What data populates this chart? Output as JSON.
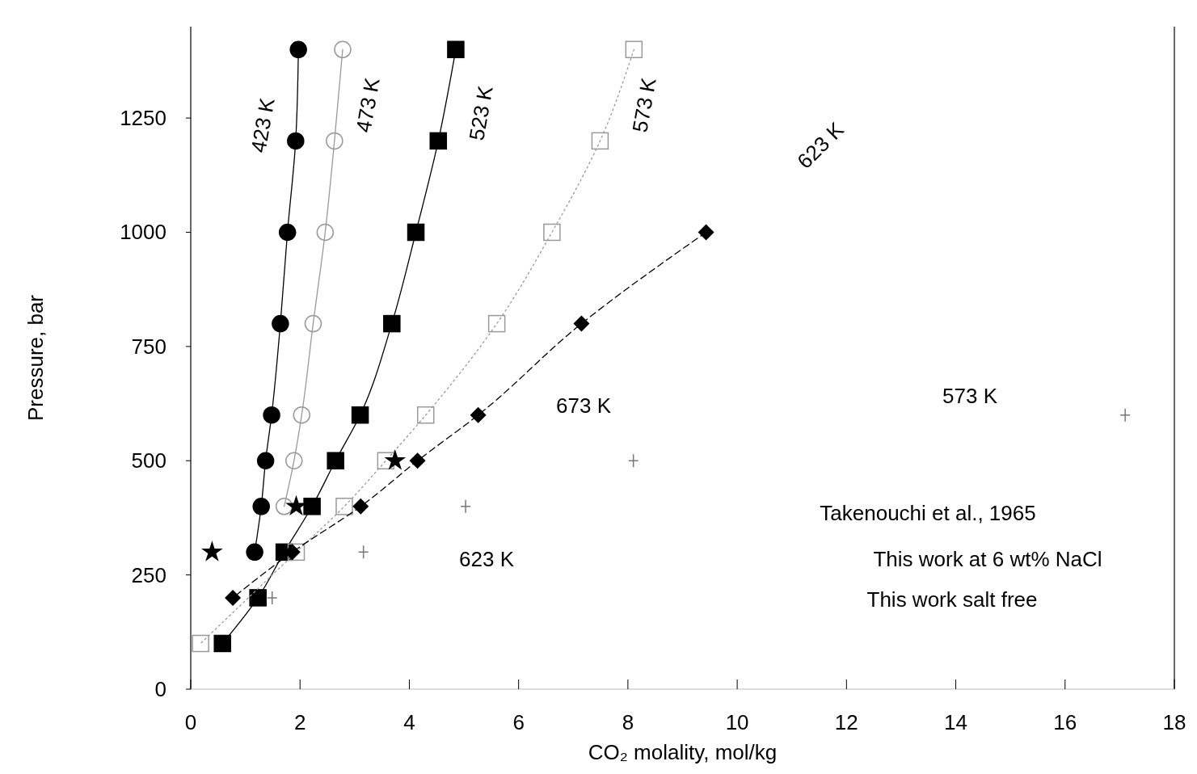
{
  "chart_data": {
    "type": "line",
    "xlabel": "CO₂ molality, mol/kg",
    "ylabel": "Pressure, bar",
    "xlim": [
      0,
      18
    ],
    "ylim": [
      0,
      1450
    ],
    "xticks": [
      0,
      2,
      4,
      6,
      8,
      10,
      12,
      14,
      16,
      18
    ],
    "yticks": [
      0,
      250,
      500,
      750,
      1000,
      1250
    ],
    "grid": false,
    "series": [
      {
        "color": "#000000",
        "marker": "circle",
        "line_style": "solid",
        "x": [
          1.97,
          1.92,
          1.77,
          1.64,
          1.48,
          1.37,
          1.29,
          1.17
        ],
        "values": [
          1400,
          1200,
          1000,
          800,
          600,
          500,
          400,
          300
        ]
      },
      {
        "color": "#999999",
        "marker": "circle",
        "line_style": "solid",
        "x": [
          2.78,
          2.63,
          2.46,
          2.24,
          2.03,
          1.89,
          1.71
        ],
        "values": [
          1400,
          1200,
          1000,
          800,
          600,
          500,
          400
        ]
      },
      {
        "color": "#000000",
        "marker": "square",
        "line_style": "solid",
        "x": [
          4.85,
          4.53,
          4.12,
          3.68,
          3.1,
          2.65,
          2.22,
          1.71,
          1.23,
          0.58
        ],
        "values": [
          1400,
          1200,
          1000,
          800,
          600,
          500,
          400,
          300,
          200,
          100
        ]
      },
      {
        "color": "#999999",
        "marker": "square",
        "line_style": "dotted",
        "x": [
          8.11,
          7.49,
          6.61,
          5.6,
          4.3,
          3.57,
          2.81,
          1.93,
          0.18
        ],
        "values": [
          1400,
          1200,
          1000,
          800,
          600,
          500,
          400,
          300,
          100
        ]
      },
      {
        "color": "#000000",
        "marker": "diamond",
        "line_style": "dashed",
        "x": [
          9.43,
          7.15,
          5.26,
          4.15,
          3.11,
          1.86,
          0.77
        ],
        "values": [
          1000,
          800,
          600,
          500,
          400,
          300,
          200
        ]
      },
      {
        "color": "#000000",
        "marker": "star",
        "type": "scatter",
        "x": [
          0.39,
          1.93,
          3.74
        ],
        "values": [
          300,
          400,
          500
        ]
      },
      {
        "color": "#777777",
        "marker": "cross",
        "type": "scatter",
        "x": [
          1.49,
          3.16,
          5.03,
          8.1,
          17.1
        ],
        "values": [
          200,
          300,
          400,
          500,
          600
        ]
      }
    ],
    "annotations": [
      "423 K",
      "473 K",
      "523 K",
      "573 K",
      "623 K",
      "673 K",
      "573 K",
      "623 K",
      "Takenouchi et al., 1965",
      "This work at 6 wt% NaCl",
      "This work salt free"
    ]
  }
}
